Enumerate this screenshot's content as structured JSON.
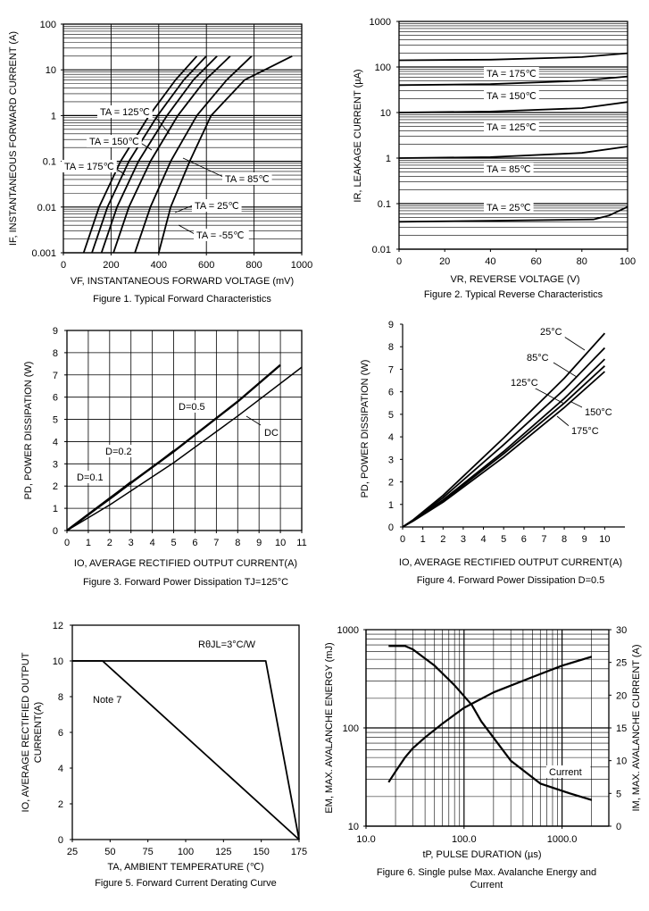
{
  "chart_data": [
    {
      "id": "fig1",
      "type": "line",
      "caption": "Figure 1. Typical Forward Characteristics",
      "xlabel": "VF, INSTANTANEOUS FORWARD VOLTAGE (mV)",
      "ylabel": "IF, INSTANTANEOUS FORWARD CURRENT (A)",
      "xlim": [
        0,
        1000
      ],
      "ylim": [
        0.001,
        100
      ],
      "yscale": "log",
      "grid": true,
      "xticks": [
        0,
        200,
        400,
        600,
        800,
        1000
      ],
      "xtick_labels": [
        "0",
        "200",
        "400",
        "600",
        "800",
        "1000"
      ],
      "yticks": [
        0.001,
        0.01,
        0.1,
        1,
        10,
        100
      ],
      "ytick_labels": [
        "0.001",
        "0.01",
        "0.1",
        "1",
        "10",
        "100"
      ],
      "series": [
        {
          "name": "TA = 175℃",
          "x": [
            85,
            150,
            240,
            360,
            470,
            560
          ],
          "y": [
            0.001,
            0.01,
            0.1,
            1,
            6,
            20
          ]
        },
        {
          "name": "TA = 150℃",
          "x": [
            120,
            185,
            275,
            395,
            505,
            600
          ],
          "y": [
            0.001,
            0.01,
            0.1,
            1,
            6,
            20
          ]
        },
        {
          "name": "TA = 125℃",
          "x": [
            160,
            225,
            315,
            435,
            545,
            645
          ],
          "y": [
            0.001,
            0.01,
            0.1,
            1,
            6,
            20
          ]
        },
        {
          "name": "TA = 85℃",
          "x": [
            210,
            275,
            365,
            480,
            595,
            700
          ],
          "y": [
            0.001,
            0.01,
            0.1,
            1,
            6,
            20
          ]
        },
        {
          "name": "TA = 25℃",
          "x": [
            300,
            365,
            450,
            560,
            685,
            790
          ],
          "y": [
            0.001,
            0.01,
            0.1,
            1,
            6,
            20
          ]
        },
        {
          "name": "TA = -55℃",
          "x": [
            400,
            450,
            530,
            620,
            760,
            960
          ],
          "y": [
            0.001,
            0.01,
            0.1,
            1,
            6,
            20
          ]
        }
      ]
    },
    {
      "id": "fig2",
      "type": "line",
      "caption": "Figure 2. Typical Reverse Characteristics",
      "xlabel": "VR, REVERSE VOLTAGE (V)",
      "ylabel": "IR, LEAKAGE CURRENT (µA)",
      "xlim": [
        0,
        100
      ],
      "ylim": [
        0.01,
        1000
      ],
      "yscale": "log",
      "grid": true,
      "xticks": [
        0,
        20,
        40,
        60,
        80,
        100
      ],
      "xtick_labels": [
        "0",
        "20",
        "40",
        "60",
        "80",
        "100"
      ],
      "yticks": [
        0.01,
        0.1,
        1,
        10,
        100,
        1000
      ],
      "ytick_labels": [
        "0.01",
        "0.1",
        "1",
        "10",
        "100",
        "1000"
      ],
      "series": [
        {
          "name": "TA = 175℃",
          "x": [
            0,
            40,
            80,
            100
          ],
          "y": [
            140,
            145,
            165,
            200
          ]
        },
        {
          "name": "TA = 150℃",
          "x": [
            0,
            40,
            80,
            100
          ],
          "y": [
            40,
            42,
            50,
            62
          ]
        },
        {
          "name": "TA = 125℃",
          "x": [
            0,
            40,
            80,
            100
          ],
          "y": [
            10,
            10.5,
            12.5,
            17
          ]
        },
        {
          "name": "TA = 85℃",
          "x": [
            0,
            40,
            80,
            100
          ],
          "y": [
            1,
            1.05,
            1.3,
            1.8
          ]
        },
        {
          "name": "TA = 25℃",
          "x": [
            0,
            40,
            85,
            92,
            100
          ],
          "y": [
            0.04,
            0.042,
            0.045,
            0.055,
            0.085
          ]
        }
      ]
    },
    {
      "id": "fig3",
      "type": "line",
      "caption": "Figure 3. Forward Power Dissipation TJ=125°C",
      "xlabel": "IO, AVERAGE RECTIFIED OUTPUT CURRENT(A)",
      "ylabel": "PD, POWER DISSIPATION (W)",
      "xlim": [
        0,
        11
      ],
      "ylim": [
        0,
        9
      ],
      "grid": true,
      "xticks": [
        0,
        1,
        2,
        3,
        4,
        5,
        6,
        7,
        8,
        9,
        10,
        11
      ],
      "xtick_labels": [
        "0",
        "1",
        "2",
        "3",
        "4",
        "5",
        "6",
        "7",
        "8",
        "9",
        "10",
        "11"
      ],
      "yticks": [
        0,
        1,
        2,
        3,
        4,
        5,
        6,
        7,
        8,
        9
      ],
      "ytick_labels": [
        "0",
        "1",
        "2",
        "3",
        "4",
        "5",
        "6",
        "7",
        "8",
        "9"
      ],
      "series": [
        {
          "name": "D=0.1",
          "x": [
            0,
            1,
            2,
            3
          ],
          "y": [
            0,
            0.7,
            1.45,
            2.2
          ]
        },
        {
          "name": "D=0.2",
          "x": [
            0,
            2,
            4,
            5
          ],
          "y": [
            0,
            1.4,
            2.85,
            3.6
          ]
        },
        {
          "name": "D=0.5",
          "x": [
            0,
            2,
            5,
            8,
            10
          ],
          "y": [
            0,
            1.45,
            3.55,
            5.8,
            7.45
          ]
        },
        {
          "name": "DC",
          "x": [
            0,
            2,
            5,
            8,
            11
          ],
          "y": [
            0,
            1.15,
            3.05,
            5.15,
            7.35
          ]
        }
      ],
      "labels": [
        "D=0.1",
        "D=0.2",
        "D=0.5",
        "DC"
      ]
    },
    {
      "id": "fig4",
      "type": "line",
      "caption": "Figure 4. Forward Power Dissipation D=0.5",
      "xlabel": "IO, AVERAGE RECTIFIED OUTPUT CURRENT(A)",
      "ylabel": "PD, POWER DISSIPATION (W)",
      "xlim": [
        0,
        11
      ],
      "ylim": [
        0,
        9
      ],
      "grid": false,
      "xticks": [
        0,
        1,
        2,
        3,
        4,
        5,
        6,
        7,
        8,
        9,
        10
      ],
      "xtick_labels": [
        "0",
        "1",
        "2",
        "3",
        "4",
        "5",
        "6",
        "7",
        "8",
        "9",
        "10"
      ],
      "yticks": [
        0,
        1,
        2,
        3,
        4,
        5,
        6,
        7,
        8,
        9
      ],
      "ytick_labels": [
        "0",
        "1",
        "2",
        "3",
        "4",
        "5",
        "6",
        "7",
        "8",
        "9"
      ],
      "series": [
        {
          "name": "25°C",
          "x": [
            0,
            0.5,
            2,
            5,
            8,
            10
          ],
          "y": [
            0,
            0.3,
            1.4,
            3.95,
            6.6,
            8.6
          ]
        },
        {
          "name": "85°C",
          "x": [
            0,
            0.5,
            2,
            5,
            8,
            10
          ],
          "y": [
            0,
            0.28,
            1.3,
            3.65,
            6.1,
            7.95
          ]
        },
        {
          "name": "125°C",
          "x": [
            0,
            0.5,
            2,
            5,
            8,
            10
          ],
          "y": [
            0,
            0.27,
            1.2,
            3.35,
            5.7,
            7.45
          ]
        },
        {
          "name": "150°C",
          "x": [
            0,
            0.5,
            2,
            5,
            8,
            10
          ],
          "y": [
            0,
            0.26,
            1.15,
            3.25,
            5.5,
            7.15
          ]
        },
        {
          "name": "175°C",
          "x": [
            0,
            0.5,
            2,
            5,
            8,
            10
          ],
          "y": [
            0,
            0.25,
            1.1,
            3.1,
            5.3,
            6.9
          ]
        }
      ]
    },
    {
      "id": "fig5",
      "type": "line",
      "caption": "Figure 5. Forward Current Derating Curve",
      "xlabel": "TA, AMBIENT TEMPERATURE (℃)",
      "ylabel_line1": "IO, AVERAGE RECTIFIED OUTPUT",
      "ylabel_line2": "CURRENT(A)",
      "xlim": [
        25,
        175
      ],
      "ylim": [
        0,
        12
      ],
      "grid": false,
      "xticks": [
        25,
        50,
        75,
        100,
        125,
        150,
        175
      ],
      "xtick_labels": [
        "25",
        "50",
        "75",
        "100",
        "125",
        "150",
        "175"
      ],
      "yticks": [
        0,
        2,
        4,
        6,
        8,
        10,
        12
      ],
      "ytick_labels": [
        "0",
        "2",
        "4",
        "6",
        "8",
        "10",
        "12"
      ],
      "series": [
        {
          "name": "Rθ JL =3°C/W",
          "x": [
            25,
            153,
            175
          ],
          "y": [
            10,
            10,
            0
          ]
        },
        {
          "name": "Note 7",
          "x": [
            25,
            45,
            175
          ],
          "y": [
            10,
            10,
            0
          ]
        }
      ],
      "annotation": "RθJL=3°C/W",
      "note": "Note 7"
    },
    {
      "id": "fig6",
      "type": "line",
      "caption_line1": "Figure 6. Single pulse Max. Avalanche Energy and",
      "caption_line2": "Current",
      "xlabel": "tP, PULSE DURATION (µs)",
      "ylabel_left": "EM, MAX. AVALANCHE ENERGY (mJ)",
      "ylabel_right": "IM, MAX. AVALANCHE CURRENT (A)",
      "xscale": "log",
      "yscale": "log",
      "xlim": [
        10,
        3000
      ],
      "ylim": [
        10,
        1000
      ],
      "y2lim": [
        0,
        30
      ],
      "grid": true,
      "xticks": [
        10,
        100,
        1000
      ],
      "xtick_labels": [
        "10.0",
        "100.0",
        "1000.0"
      ],
      "yticks": [
        10,
        100,
        1000
      ],
      "ytick_labels": [
        "10",
        "100",
        "1000"
      ],
      "y2ticks": [
        0,
        5,
        10,
        15,
        20,
        25,
        30
      ],
      "y2tick_labels": [
        "0",
        "5",
        "10",
        "15",
        "20",
        "25",
        "30"
      ],
      "series": [
        {
          "name": "Energy",
          "axis": "left",
          "x": [
            17,
            20,
            25,
            30,
            40,
            60,
            100,
            200,
            500,
            1000,
            2000
          ],
          "y": [
            28,
            36,
            50,
            62,
            80,
            110,
            160,
            230,
            330,
            430,
            530
          ]
        },
        {
          "name": "Current",
          "axis": "right",
          "x": [
            17,
            25,
            30,
            50,
            80,
            120,
            150,
            300,
            600,
            1200,
            2000
          ],
          "y": [
            27.5,
            27.5,
            27,
            24.5,
            21.5,
            18.5,
            16,
            10,
            6.5,
            5,
            4
          ]
        }
      ],
      "label": "Current"
    }
  ]
}
